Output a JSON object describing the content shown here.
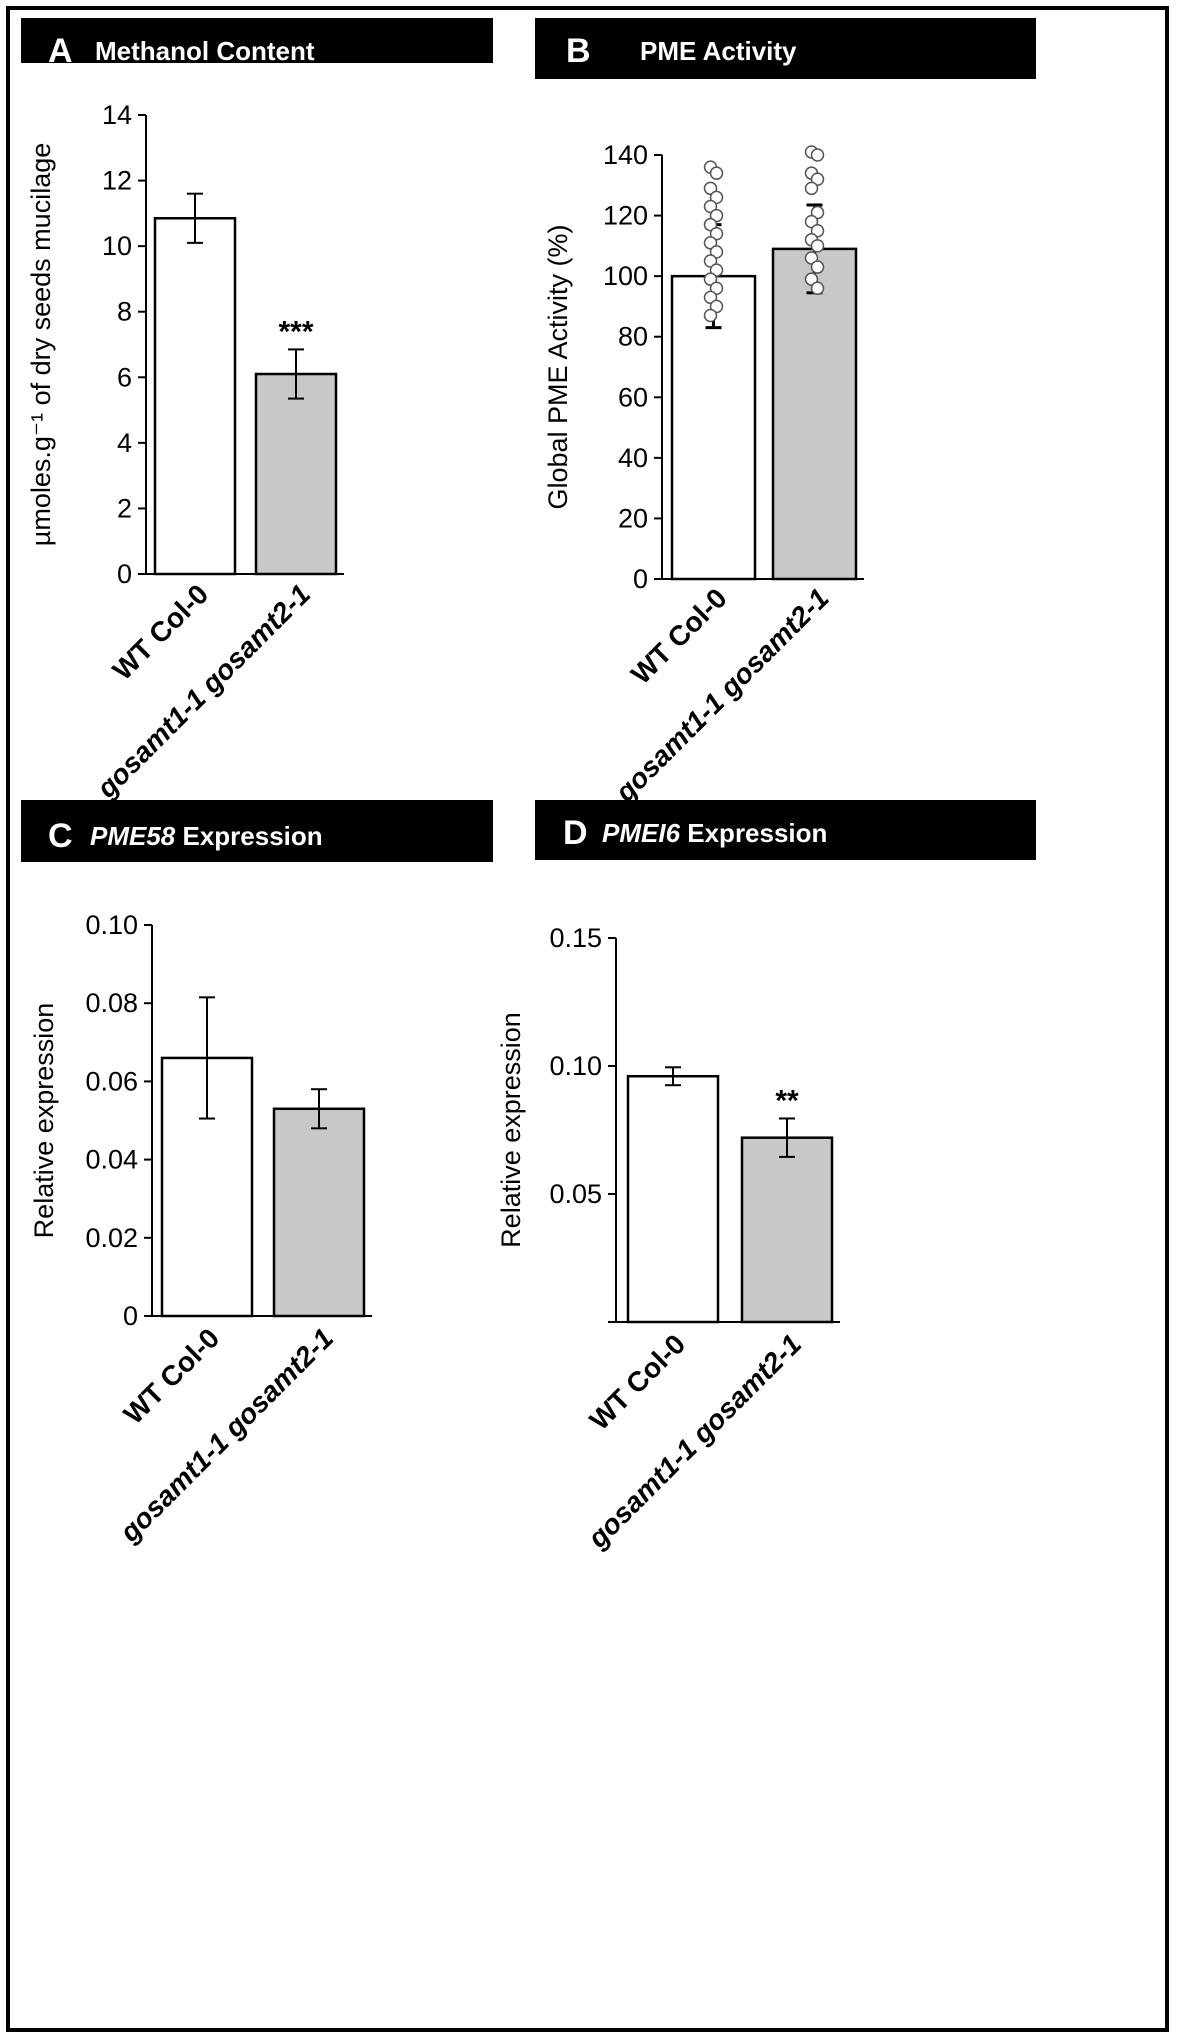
{
  "chart_data": [
    {
      "panel_letter": "A",
      "title": "Methanol Content",
      "title_italic": "",
      "type": "bar",
      "categories": [
        "WT Col-0",
        "gosamt1-1 gosamt2-1"
      ],
      "values": [
        10.85,
        6.1
      ],
      "errors": [
        0.75,
        0.75
      ],
      "significance": [
        "",
        "***"
      ],
      "ylabel": "µmoles.g⁻¹ of dry seeds mucilage",
      "ylim": [
        0,
        14
      ],
      "yticks": [
        "0",
        "2",
        "4",
        "6",
        "8",
        "10",
        "12",
        "14"
      ],
      "bar_colors": [
        "#ffffff",
        "#c8c8c8"
      ]
    },
    {
      "panel_letter": "B",
      "title": "PME Activity",
      "title_italic": "",
      "type": "bar",
      "categories": [
        "WT Col-0",
        "gosamt1-1 gosamt2-1"
      ],
      "values": [
        100,
        109
      ],
      "errors": [
        17,
        14.5
      ],
      "significance": [
        "",
        ""
      ],
      "ylabel": "Global PME Activity (%)",
      "ylim": [
        0,
        140
      ],
      "yticks": [
        "0",
        "20",
        "40",
        "60",
        "80",
        "100",
        "120",
        "140"
      ],
      "bar_colors": [
        "#ffffff",
        "#c8c8c8"
      ],
      "points": [
        [
          136,
          134,
          129,
          126,
          123,
          120,
          117,
          114,
          111,
          108,
          105,
          102,
          99,
          96,
          93,
          90,
          87
        ],
        [
          141,
          140,
          134,
          132,
          129,
          121,
          118,
          115,
          112,
          110,
          106,
          103,
          99,
          96
        ]
      ]
    },
    {
      "panel_letter": "C",
      "title": " Expression",
      "title_italic": "PME58",
      "type": "bar",
      "categories": [
        "WT Col-0",
        "gosamt1-1 gosamt2-1"
      ],
      "values": [
        0.066,
        0.053
      ],
      "errors": [
        0.0155,
        0.005
      ],
      "significance": [
        "",
        ""
      ],
      "ylabel": "Relative expression",
      "ylim": [
        0,
        0.1
      ],
      "yticks": [
        "0",
        "0.02",
        "0.04",
        "0.06",
        "0.08",
        "0.10"
      ],
      "bar_colors": [
        "#ffffff",
        "#c8c8c8"
      ]
    },
    {
      "panel_letter": "D",
      "title": " Expression",
      "title_italic": "PMEI6",
      "type": "bar",
      "categories": [
        "WT Col-0",
        "gosamt1-1 gosamt2-1"
      ],
      "values": [
        0.096,
        0.072
      ],
      "errors": [
        0.0035,
        0.0075
      ],
      "significance": [
        "",
        "**"
      ],
      "ylabel": "Relative expression",
      "ylim": [
        0,
        0.15
      ],
      "yticks": [
        "",
        "0.05",
        "0.10",
        "0.15"
      ],
      "bar_colors": [
        "#ffffff",
        "#c8c8c8"
      ]
    }
  ]
}
